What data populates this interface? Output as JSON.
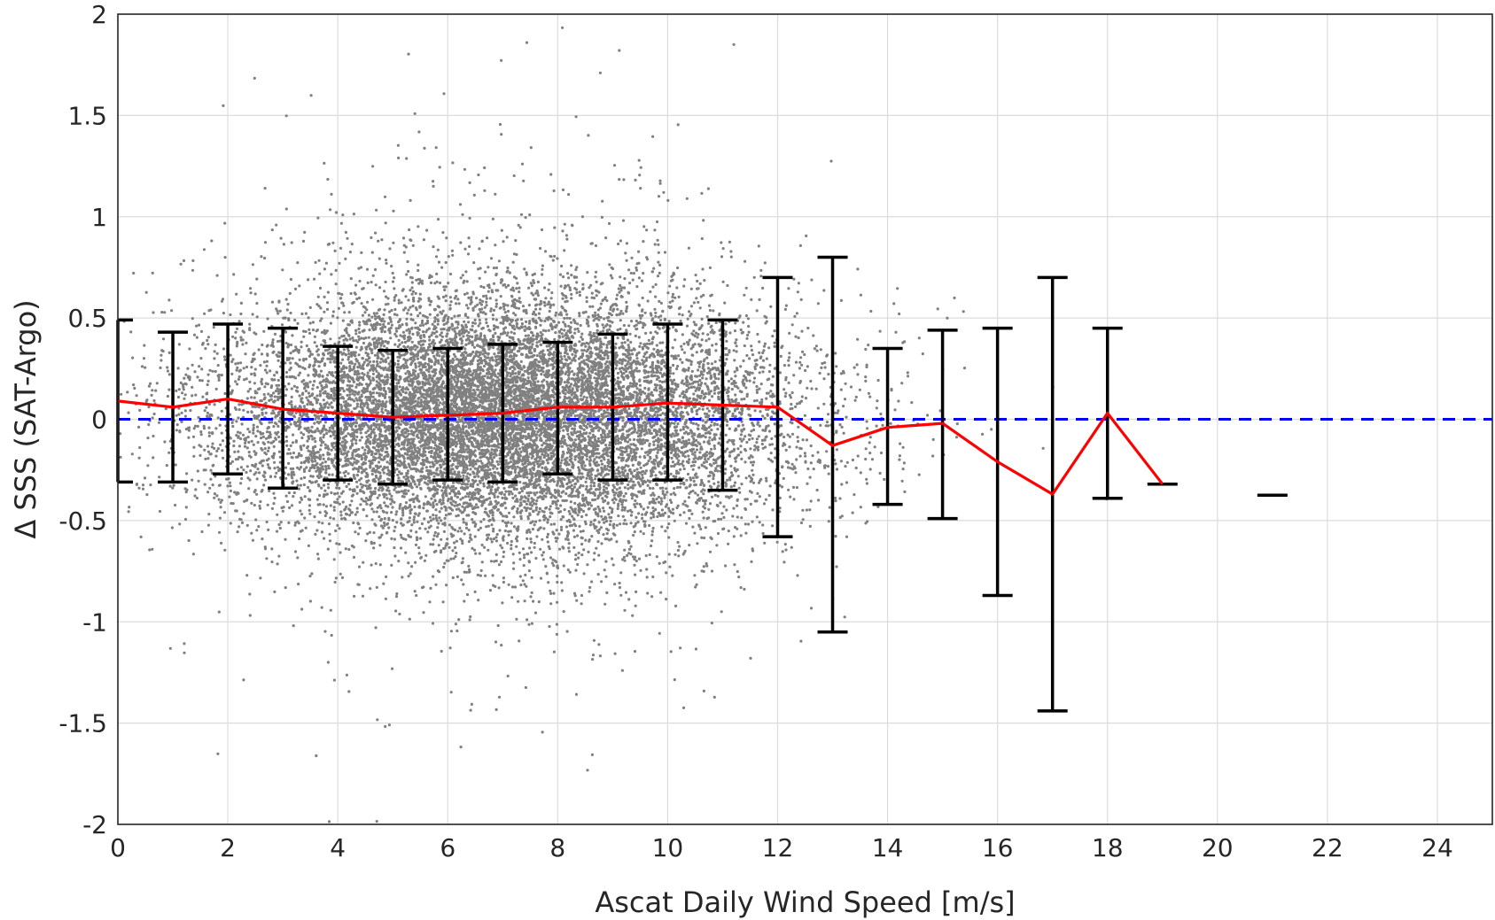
{
  "chart_data": {
    "type": "scatter",
    "title": "",
    "xlabel": "Ascat Daily Wind Speed [m/s]",
    "ylabel": "Δ SSS (SAT-Argo)",
    "xlim": [
      0,
      25
    ],
    "ylim": [
      -2,
      2
    ],
    "xticks": [
      0,
      2,
      4,
      6,
      8,
      10,
      12,
      14,
      16,
      18,
      20,
      22,
      24
    ],
    "yticks": [
      2,
      1.5,
      1,
      0.5,
      0,
      -0.5,
      -1,
      -1.5,
      -2
    ],
    "ytick_labels": [
      "2",
      "1.5",
      "1",
      "0.5",
      "0",
      "-0.5",
      "-1",
      "-1.5",
      "-2"
    ],
    "grid": true,
    "legend": "none",
    "colors": {
      "scatter": "#808080",
      "mean_line": "#ff0000",
      "error_bars": "#000000",
      "reference_line": "#0000ff"
    },
    "reference_line": {
      "y": 0,
      "style": "dashed"
    },
    "scatter_description": {
      "x_center": 7,
      "x_spread": 2.6,
      "y_center": 0.02,
      "y_spread": 0.3,
      "approx_points": 14000
    },
    "binned_means": {
      "x": [
        0,
        1,
        2,
        3,
        4,
        5,
        6,
        7,
        8,
        9,
        10,
        11,
        12,
        13,
        14,
        15,
        16,
        17,
        18,
        19,
        21
      ],
      "mean": [
        0.09,
        0.06,
        0.1,
        0.05,
        0.03,
        0.01,
        0.02,
        0.03,
        0.06,
        0.06,
        0.08,
        0.07,
        0.06,
        -0.13,
        -0.04,
        -0.02,
        -0.21,
        -0.37,
        0.03,
        -0.32,
        -0.375
      ],
      "upper": [
        0.49,
        0.43,
        0.47,
        0.45,
        0.36,
        0.34,
        0.35,
        0.37,
        0.38,
        0.42,
        0.47,
        0.49,
        0.7,
        0.8,
        0.35,
        0.44,
        0.45,
        0.7,
        0.45,
        -0.32,
        -0.375
      ],
      "lower": [
        -0.31,
        -0.31,
        -0.27,
        -0.34,
        -0.3,
        -0.32,
        -0.3,
        -0.31,
        -0.27,
        -0.3,
        -0.3,
        -0.35,
        -0.58,
        -1.05,
        -0.42,
        -0.49,
        -0.87,
        -1.44,
        -0.39,
        -0.32,
        -0.375
      ]
    }
  }
}
